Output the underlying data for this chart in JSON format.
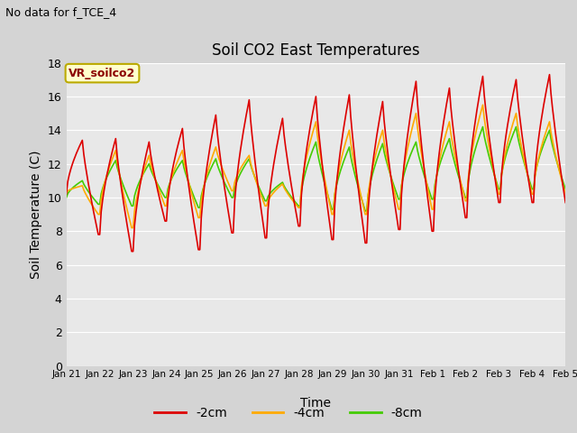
{
  "title": "Soil CO2 East Temperatures",
  "xlabel": "Time",
  "ylabel": "Soil Temperature (C)",
  "no_data_label": "No data for f_TCE_4",
  "legend_label": "VR_soilco2",
  "ylim": [
    0,
    18
  ],
  "yticks": [
    0,
    2,
    4,
    6,
    8,
    10,
    12,
    14,
    16,
    18
  ],
  "xtick_labels": [
    "Jan 21",
    "Jan 22",
    "Jan 23",
    "Jan 24",
    "Jan 25",
    "Jan 26",
    "Jan 27",
    "Jan 28",
    "Jan 29",
    "Jan 30",
    "Jan 31",
    "Feb 1",
    "Feb 2",
    "Feb 3",
    "Feb 4",
    "Feb 5"
  ],
  "color_2cm": "#dd0000",
  "color_4cm": "#ffaa00",
  "color_8cm": "#44cc00",
  "fig_bg_color": "#d4d4d4",
  "plot_bg_color": "#e8e8e8",
  "grid_color": "#ffffff",
  "line_series_labels": [
    "-2cm",
    "-4cm",
    "-8cm"
  ],
  "n_days": 15,
  "hrs": 48,
  "day_peaks_2cm": [
    13.4,
    13.5,
    13.3,
    14.1,
    14.9,
    15.8,
    14.7,
    16.0,
    16.1,
    15.7,
    16.9,
    16.5,
    17.2,
    17.0,
    17.3
  ],
  "day_troughs_2cm": [
    10.2,
    7.8,
    6.8,
    8.6,
    6.9,
    7.9,
    7.6,
    8.3,
    7.5,
    7.3,
    8.1,
    8.0,
    8.8,
    9.7,
    9.7
  ],
  "day_peaks_4cm": [
    10.7,
    12.8,
    12.5,
    12.8,
    13.0,
    12.5,
    10.8,
    14.5,
    14.0,
    14.0,
    15.0,
    14.5,
    15.5,
    15.0,
    14.5
  ],
  "day_troughs_4cm": [
    10.3,
    9.0,
    8.2,
    9.5,
    8.8,
    10.4,
    9.5,
    9.4,
    9.0,
    9.0,
    9.3,
    9.3,
    9.8,
    10.2,
    10.2
  ],
  "day_peaks_8cm": [
    11.0,
    12.2,
    12.0,
    12.2,
    12.3,
    12.3,
    10.9,
    13.3,
    13.0,
    13.2,
    13.3,
    13.5,
    14.2,
    14.2,
    14.0
  ],
  "day_troughs_8cm": [
    10.0,
    9.6,
    9.5,
    10.0,
    9.4,
    10.0,
    9.8,
    9.5,
    9.3,
    9.2,
    9.9,
    9.9,
    10.0,
    10.5,
    10.5
  ]
}
